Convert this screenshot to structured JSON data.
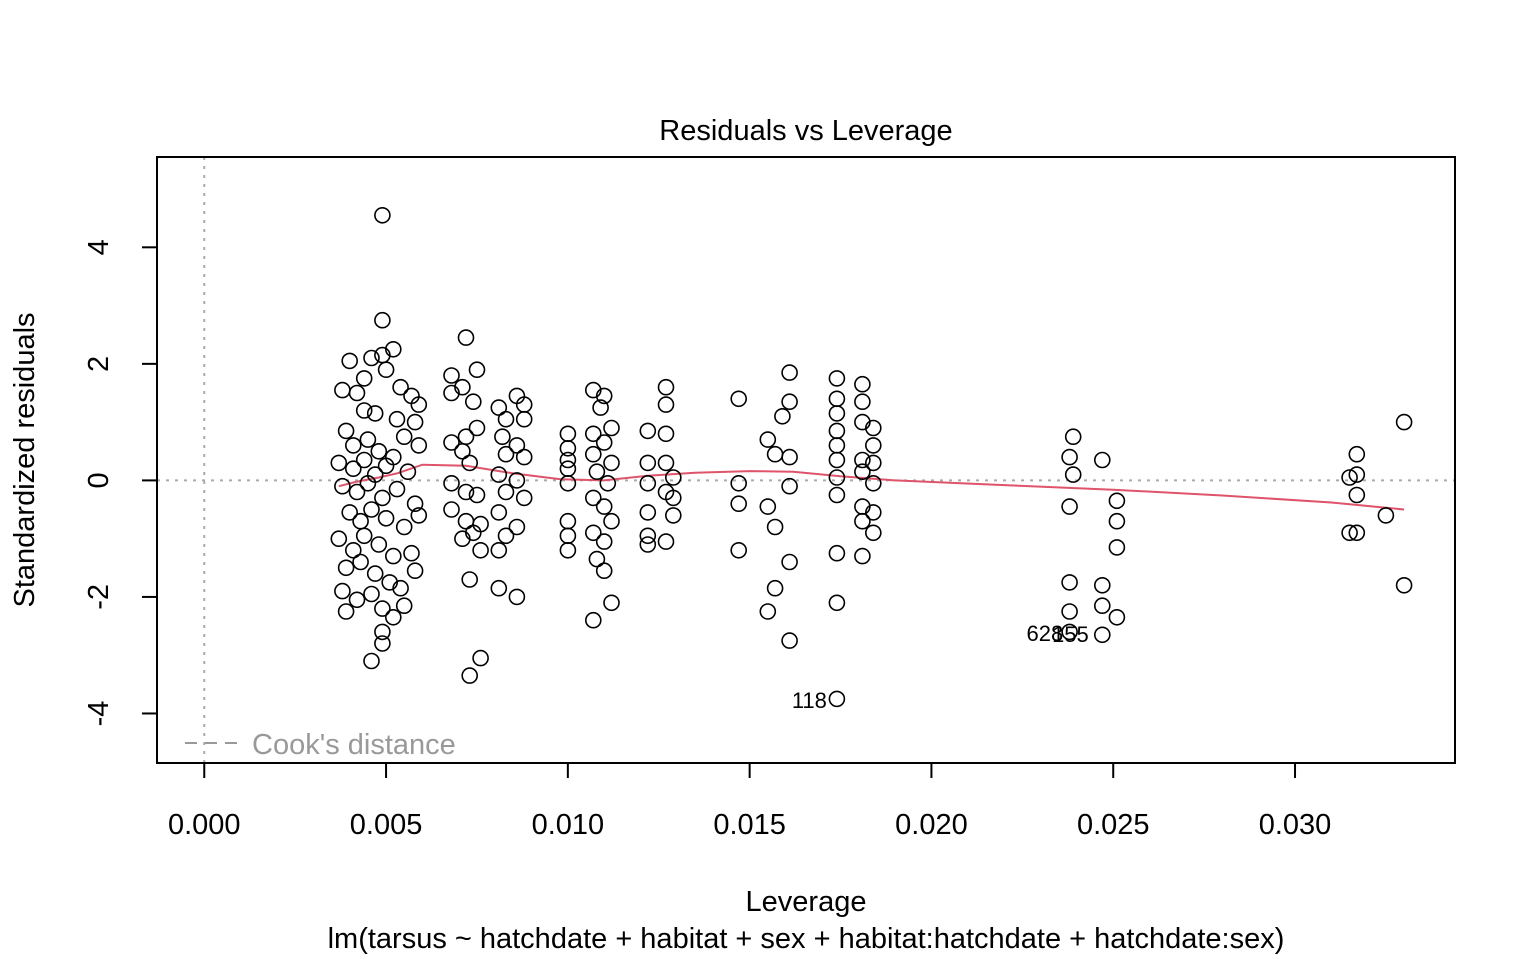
{
  "chart_data": {
    "type": "scatter",
    "title": "Residuals vs Leverage",
    "xlabel": "Leverage",
    "subtitle": "lm(tarsus ~ hatchdate + habitat + sex + habitat:hatchdate + hatchdate:sex)",
    "ylabel": "Standardized residuals",
    "xlim": [
      -0.0013,
      0.0344
    ],
    "ylim": [
      -4.85,
      5.55
    ],
    "x_ticks": [
      "0.000",
      "0.005",
      "0.010",
      "0.015",
      "0.020",
      "0.025",
      "0.030"
    ],
    "x_tick_values": [
      0.0,
      0.005,
      0.01,
      0.015,
      0.02,
      0.025,
      0.03
    ],
    "y_ticks": [
      "-4",
      "-2",
      "0",
      "2",
      "4"
    ],
    "y_tick_values": [
      -4,
      -2,
      0,
      2,
      4
    ],
    "legend": {
      "label": "Cook's distance",
      "position": "bottom-left",
      "line_style": "dashed"
    },
    "reference_lines": {
      "horizontal_zero": true,
      "vertical_zero": true,
      "style": "dotted",
      "color": "#aaaaaa"
    },
    "colors": {
      "points": "#000000",
      "smooth": "#df536b",
      "reference": "#aaaaaa",
      "legend": "#999999"
    },
    "smoother": {
      "x": [
        0.0037,
        0.0042,
        0.0048,
        0.0053,
        0.006,
        0.0072,
        0.0085,
        0.0098,
        0.011,
        0.0122,
        0.0135,
        0.015,
        0.0162,
        0.0175,
        0.019,
        0.022,
        0.025,
        0.028,
        0.031,
        0.033
      ],
      "y": [
        -0.1,
        -0.02,
        0.05,
        0.12,
        0.27,
        0.25,
        0.12,
        0.02,
        0.0,
        0.08,
        0.13,
        0.16,
        0.15,
        0.07,
        0.0,
        -0.08,
        -0.16,
        -0.26,
        -0.38,
        -0.5
      ]
    },
    "labels": [
      {
        "text": "118",
        "x": 0.0174,
        "y": -3.77
      },
      {
        "text": "628",
        "x": 0.0239,
        "y": -2.62
      },
      {
        "text": "155",
        "x": 0.0246,
        "y": -2.64
      }
    ],
    "series": [
      {
        "x": 0.0049,
        "y": 4.55
      },
      {
        "x": 0.0049,
        "y": 2.75
      },
      {
        "x": 0.0052,
        "y": 2.25
      },
      {
        "x": 0.004,
        "y": 2.05
      },
      {
        "x": 0.0046,
        "y": 2.1
      },
      {
        "x": 0.0049,
        "y": 2.15
      },
      {
        "x": 0.0044,
        "y": 1.75
      },
      {
        "x": 0.005,
        "y": 1.9
      },
      {
        "x": 0.0038,
        "y": 1.55
      },
      {
        "x": 0.0054,
        "y": 1.6
      },
      {
        "x": 0.0057,
        "y": 1.45
      },
      {
        "x": 0.0059,
        "y": 1.3
      },
      {
        "x": 0.0042,
        "y": 1.5
      },
      {
        "x": 0.0044,
        "y": 1.2
      },
      {
        "x": 0.0047,
        "y": 1.15
      },
      {
        "x": 0.0053,
        "y": 1.05
      },
      {
        "x": 0.0058,
        "y": 1.0
      },
      {
        "x": 0.0039,
        "y": 0.85
      },
      {
        "x": 0.0041,
        "y": 0.6
      },
      {
        "x": 0.0045,
        "y": 0.7
      },
      {
        "x": 0.0048,
        "y": 0.5
      },
      {
        "x": 0.0052,
        "y": 0.4
      },
      {
        "x": 0.0055,
        "y": 0.75
      },
      {
        "x": 0.0059,
        "y": 0.6
      },
      {
        "x": 0.0037,
        "y": 0.3
      },
      {
        "x": 0.0041,
        "y": 0.2
      },
      {
        "x": 0.0044,
        "y": 0.35
      },
      {
        "x": 0.0047,
        "y": 0.1
      },
      {
        "x": 0.005,
        "y": 0.25
      },
      {
        "x": 0.0056,
        "y": 0.15
      },
      {
        "x": 0.0038,
        "y": -0.1
      },
      {
        "x": 0.0042,
        "y": -0.2
      },
      {
        "x": 0.0045,
        "y": -0.05
      },
      {
        "x": 0.0049,
        "y": -0.3
      },
      {
        "x": 0.0053,
        "y": -0.15
      },
      {
        "x": 0.0058,
        "y": -0.4
      },
      {
        "x": 0.004,
        "y": -0.55
      },
      {
        "x": 0.0043,
        "y": -0.7
      },
      {
        "x": 0.0046,
        "y": -0.5
      },
      {
        "x": 0.005,
        "y": -0.65
      },
      {
        "x": 0.0055,
        "y": -0.8
      },
      {
        "x": 0.0059,
        "y": -0.6
      },
      {
        "x": 0.0037,
        "y": -1.0
      },
      {
        "x": 0.0041,
        "y": -1.2
      },
      {
        "x": 0.0044,
        "y": -0.95
      },
      {
        "x": 0.0048,
        "y": -1.1
      },
      {
        "x": 0.0052,
        "y": -1.3
      },
      {
        "x": 0.0057,
        "y": -1.25
      },
      {
        "x": 0.0039,
        "y": -1.5
      },
      {
        "x": 0.0043,
        "y": -1.4
      },
      {
        "x": 0.0047,
        "y": -1.6
      },
      {
        "x": 0.0051,
        "y": -1.75
      },
      {
        "x": 0.0054,
        "y": -1.85
      },
      {
        "x": 0.0058,
        "y": -1.55
      },
      {
        "x": 0.0038,
        "y": -1.9
      },
      {
        "x": 0.0042,
        "y": -2.05
      },
      {
        "x": 0.0046,
        "y": -1.95
      },
      {
        "x": 0.0049,
        "y": -2.2
      },
      {
        "x": 0.0052,
        "y": -2.35
      },
      {
        "x": 0.0055,
        "y": -2.15
      },
      {
        "x": 0.0039,
        "y": -2.25
      },
      {
        "x": 0.0049,
        "y": -2.6
      },
      {
        "x": 0.0049,
        "y": -2.8
      },
      {
        "x": 0.0046,
        "y": -3.1
      },
      {
        "x": 0.0068,
        "y": 1.8
      },
      {
        "x": 0.0072,
        "y": 2.45
      },
      {
        "x": 0.0075,
        "y": 1.9
      },
      {
        "x": 0.0071,
        "y": 1.6
      },
      {
        "x": 0.0068,
        "y": 1.5
      },
      {
        "x": 0.0074,
        "y": 1.35
      },
      {
        "x": 0.0068,
        "y": 0.65
      },
      {
        "x": 0.0072,
        "y": 0.75
      },
      {
        "x": 0.0075,
        "y": 0.9
      },
      {
        "x": 0.0071,
        "y": 0.5
      },
      {
        "x": 0.0073,
        "y": 0.3
      },
      {
        "x": 0.0068,
        "y": -0.05
      },
      {
        "x": 0.0072,
        "y": -0.2
      },
      {
        "x": 0.0075,
        "y": -0.25
      },
      {
        "x": 0.0068,
        "y": -0.5
      },
      {
        "x": 0.0072,
        "y": -0.7
      },
      {
        "x": 0.0076,
        "y": -0.75
      },
      {
        "x": 0.0071,
        "y": -1.0
      },
      {
        "x": 0.0074,
        "y": -0.9
      },
      {
        "x": 0.0076,
        "y": -1.2
      },
      {
        "x": 0.0073,
        "y": -1.7
      },
      {
        "x": 0.0076,
        "y": -3.05
      },
      {
        "x": 0.0073,
        "y": -3.35
      },
      {
        "x": 0.0081,
        "y": 1.25
      },
      {
        "x": 0.0086,
        "y": 1.45
      },
      {
        "x": 0.0088,
        "y": 1.3
      },
      {
        "x": 0.0083,
        "y": 1.05
      },
      {
        "x": 0.0088,
        "y": 1.05
      },
      {
        "x": 0.0082,
        "y": 0.75
      },
      {
        "x": 0.0086,
        "y": 0.6
      },
      {
        "x": 0.0083,
        "y": 0.45
      },
      {
        "x": 0.0088,
        "y": 0.4
      },
      {
        "x": 0.0081,
        "y": 0.1
      },
      {
        "x": 0.0086,
        "y": 0.0
      },
      {
        "x": 0.0083,
        "y": -0.2
      },
      {
        "x": 0.0088,
        "y": -0.3
      },
      {
        "x": 0.0081,
        "y": -0.55
      },
      {
        "x": 0.0086,
        "y": -0.8
      },
      {
        "x": 0.0083,
        "y": -0.95
      },
      {
        "x": 0.0081,
        "y": -1.2
      },
      {
        "x": 0.0081,
        "y": -1.85
      },
      {
        "x": 0.0086,
        "y": -2.0
      },
      {
        "x": 0.01,
        "y": 0.8
      },
      {
        "x": 0.01,
        "y": 0.55
      },
      {
        "x": 0.01,
        "y": 0.35
      },
      {
        "x": 0.01,
        "y": 0.2
      },
      {
        "x": 0.01,
        "y": -0.05
      },
      {
        "x": 0.01,
        "y": -0.7
      },
      {
        "x": 0.01,
        "y": -0.95
      },
      {
        "x": 0.01,
        "y": -1.2
      },
      {
        "x": 0.0107,
        "y": 1.55
      },
      {
        "x": 0.011,
        "y": 1.45
      },
      {
        "x": 0.0109,
        "y": 1.25
      },
      {
        "x": 0.0112,
        "y": 0.9
      },
      {
        "x": 0.0107,
        "y": 0.8
      },
      {
        "x": 0.011,
        "y": 0.65
      },
      {
        "x": 0.0107,
        "y": 0.45
      },
      {
        "x": 0.0112,
        "y": 0.3
      },
      {
        "x": 0.0108,
        "y": 0.15
      },
      {
        "x": 0.0111,
        "y": -0.05
      },
      {
        "x": 0.0107,
        "y": -0.3
      },
      {
        "x": 0.011,
        "y": -0.45
      },
      {
        "x": 0.0112,
        "y": -0.7
      },
      {
        "x": 0.0107,
        "y": -0.9
      },
      {
        "x": 0.011,
        "y": -1.05
      },
      {
        "x": 0.0108,
        "y": -1.35
      },
      {
        "x": 0.011,
        "y": -1.55
      },
      {
        "x": 0.0112,
        "y": -2.1
      },
      {
        "x": 0.0107,
        "y": -2.4
      },
      {
        "x": 0.0122,
        "y": 0.85
      },
      {
        "x": 0.0127,
        "y": 1.6
      },
      {
        "x": 0.0127,
        "y": 1.3
      },
      {
        "x": 0.0127,
        "y": 0.8
      },
      {
        "x": 0.0122,
        "y": 0.3
      },
      {
        "x": 0.0127,
        "y": 0.3
      },
      {
        "x": 0.0129,
        "y": 0.05
      },
      {
        "x": 0.0122,
        "y": -0.05
      },
      {
        "x": 0.0127,
        "y": -0.2
      },
      {
        "x": 0.0129,
        "y": -0.3
      },
      {
        "x": 0.0122,
        "y": -0.55
      },
      {
        "x": 0.0129,
        "y": -0.6
      },
      {
        "x": 0.0122,
        "y": -0.95
      },
      {
        "x": 0.0127,
        "y": -1.05
      },
      {
        "x": 0.0122,
        "y": -1.1
      },
      {
        "x": 0.0147,
        "y": 1.4
      },
      {
        "x": 0.0147,
        "y": -0.05
      },
      {
        "x": 0.0147,
        "y": -0.4
      },
      {
        "x": 0.0147,
        "y": -1.2
      },
      {
        "x": 0.0155,
        "y": 0.7
      },
      {
        "x": 0.0157,
        "y": 0.45
      },
      {
        "x": 0.0155,
        "y": -0.45
      },
      {
        "x": 0.0157,
        "y": -0.8
      },
      {
        "x": 0.0155,
        "y": -2.25
      },
      {
        "x": 0.0157,
        "y": -1.85
      },
      {
        "x": 0.0161,
        "y": 1.85
      },
      {
        "x": 0.0159,
        "y": 1.1
      },
      {
        "x": 0.0161,
        "y": 1.35
      },
      {
        "x": 0.0161,
        "y": 0.4
      },
      {
        "x": 0.0161,
        "y": -0.1
      },
      {
        "x": 0.0161,
        "y": -1.4
      },
      {
        "x": 0.0161,
        "y": -2.75
      },
      {
        "x": 0.0174,
        "y": 1.75
      },
      {
        "x": 0.0174,
        "y": 1.4
      },
      {
        "x": 0.0174,
        "y": 1.15
      },
      {
        "x": 0.0174,
        "y": 0.85
      },
      {
        "x": 0.0174,
        "y": 0.6
      },
      {
        "x": 0.0174,
        "y": 0.35
      },
      {
        "x": 0.0174,
        "y": 0.05
      },
      {
        "x": 0.0174,
        "y": -0.25
      },
      {
        "x": 0.0174,
        "y": -1.25
      },
      {
        "x": 0.0174,
        "y": -2.1
      },
      {
        "x": 0.0174,
        "y": -3.75
      },
      {
        "x": 0.0181,
        "y": 1.65
      },
      {
        "x": 0.0181,
        "y": 1.35
      },
      {
        "x": 0.0181,
        "y": 1.0
      },
      {
        "x": 0.0181,
        "y": 0.35
      },
      {
        "x": 0.0181,
        "y": 0.15
      },
      {
        "x": 0.0181,
        "y": -0.45
      },
      {
        "x": 0.0181,
        "y": -0.7
      },
      {
        "x": 0.0181,
        "y": -1.3
      },
      {
        "x": 0.0184,
        "y": 0.9
      },
      {
        "x": 0.0184,
        "y": 0.6
      },
      {
        "x": 0.0184,
        "y": 0.3
      },
      {
        "x": 0.0184,
        "y": -0.05
      },
      {
        "x": 0.0184,
        "y": -0.55
      },
      {
        "x": 0.0184,
        "y": -0.9
      },
      {
        "x": 0.0239,
        "y": 0.75
      },
      {
        "x": 0.0238,
        "y": 0.4
      },
      {
        "x": 0.0239,
        "y": 0.1
      },
      {
        "x": 0.0238,
        "y": -0.45
      },
      {
        "x": 0.0238,
        "y": -1.75
      },
      {
        "x": 0.0238,
        "y": -2.25
      },
      {
        "x": 0.0238,
        "y": -2.6
      },
      {
        "x": 0.0247,
        "y": 0.35
      },
      {
        "x": 0.0251,
        "y": -0.35
      },
      {
        "x": 0.0251,
        "y": -0.7
      },
      {
        "x": 0.0251,
        "y": -1.15
      },
      {
        "x": 0.0247,
        "y": -1.8
      },
      {
        "x": 0.0247,
        "y": -2.15
      },
      {
        "x": 0.0251,
        "y": -2.35
      },
      {
        "x": 0.0247,
        "y": -2.65
      },
      {
        "x": 0.0317,
        "y": 0.45
      },
      {
        "x": 0.0317,
        "y": 0.1
      },
      {
        "x": 0.0315,
        "y": 0.05
      },
      {
        "x": 0.0317,
        "y": -0.25
      },
      {
        "x": 0.0315,
        "y": -0.9
      },
      {
        "x": 0.0317,
        "y": -0.9
      },
      {
        "x": 0.0325,
        "y": -0.6
      },
      {
        "x": 0.033,
        "y": 1.0
      },
      {
        "x": 0.033,
        "y": -1.8
      }
    ]
  }
}
